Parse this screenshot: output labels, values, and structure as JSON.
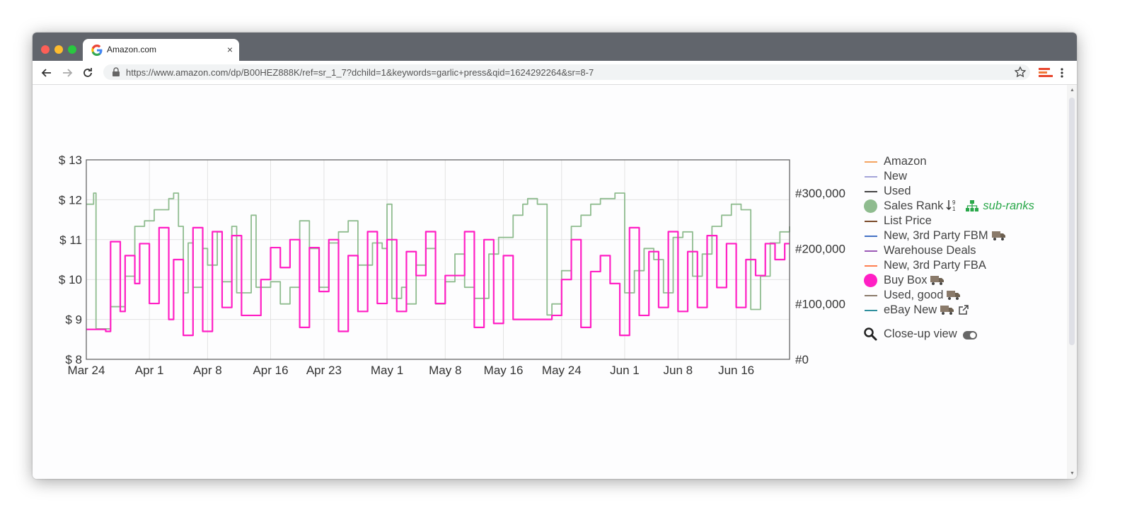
{
  "browser": {
    "tab_title": "Amazon.com",
    "tab_close": "×",
    "url": "https://www.amazon.com/dp/B00HEZ888K/ref=sr_1_7?dchild=1&keywords=garlic+press&qid=1624292264&sr=8-7"
  },
  "legend": {
    "items": [
      {
        "label": "Amazon",
        "color": "#f4a460",
        "kind": "line"
      },
      {
        "label": "New",
        "color": "#a4a4d8",
        "kind": "line"
      },
      {
        "label": "Used",
        "color": "#444444",
        "kind": "line"
      },
      {
        "label": "Sales Rank",
        "color": "#8fbc8f",
        "kind": "dot"
      },
      {
        "label": "List Price",
        "color": "#7a4a2a",
        "kind": "line"
      },
      {
        "label": "New, 3rd Party FBM",
        "color": "#4472c4",
        "kind": "line"
      },
      {
        "label": "Warehouse Deals",
        "color": "#9b59b6",
        "kind": "line"
      },
      {
        "label": "New, 3rd Party FBA",
        "color": "#ff7f50",
        "kind": "line"
      },
      {
        "label": "Buy Box",
        "color": "#ff1fc4",
        "kind": "dot"
      },
      {
        "label": "Used, good",
        "color": "#8a7a6a",
        "kind": "line"
      },
      {
        "label": "eBay New",
        "color": "#2f8f9d",
        "kind": "line"
      }
    ],
    "sub_ranks_label": "sub-ranks",
    "closeup_label": "Close-up view"
  },
  "chart_data": {
    "type": "line",
    "x_range": [
      "Mar 24",
      "Jun 21"
    ],
    "x_ticks": [
      "Mar 24",
      "Apr 1",
      "Apr 8",
      "Apr 16",
      "Apr 23",
      "May 1",
      "May 8",
      "May 16",
      "May 24",
      "Jun 1",
      "Jun 8",
      "Jun 16"
    ],
    "y_left_ticks": [
      "$ 8",
      "$ 9",
      "$ 10",
      "$ 11",
      "$ 12",
      "$ 13"
    ],
    "y_left_range": [
      8,
      13
    ],
    "y_right_ticks": [
      "#0",
      "#100,000",
      "#200,000",
      "#300,000"
    ],
    "y_right_range": [
      0,
      360000
    ],
    "grid": true,
    "series": [
      {
        "name": "Sales Rank",
        "axis": "right",
        "color": "#8fbc8f",
        "points": [
          [
            0,
            280000
          ],
          [
            1.5,
            300000
          ],
          [
            2,
            55000
          ],
          [
            5,
            95000
          ],
          [
            8,
            150000
          ],
          [
            10,
            240000
          ],
          [
            12,
            250000
          ],
          [
            14,
            270000
          ],
          [
            17,
            290000
          ],
          [
            18,
            300000
          ],
          [
            19,
            240000
          ],
          [
            20,
            120000
          ],
          [
            21,
            210000
          ],
          [
            22,
            130000
          ],
          [
            24,
            200000
          ],
          [
            25,
            170000
          ],
          [
            27,
            230000
          ],
          [
            28,
            140000
          ],
          [
            30,
            240000
          ],
          [
            31,
            120000
          ],
          [
            34,
            260000
          ],
          [
            35,
            130000
          ],
          [
            38,
            140000
          ],
          [
            40,
            100000
          ],
          [
            42,
            130000
          ],
          [
            44,
            250000
          ],
          [
            46,
            200000
          ],
          [
            48,
            130000
          ],
          [
            50,
            210000
          ],
          [
            52,
            230000
          ],
          [
            54,
            250000
          ],
          [
            56,
            170000
          ],
          [
            59,
            210000
          ],
          [
            61,
            200000
          ],
          [
            62,
            280000
          ],
          [
            63,
            110000
          ],
          [
            65,
            130000
          ],
          [
            66,
            100000
          ],
          [
            68,
            170000
          ],
          [
            70,
            200000
          ],
          [
            72,
            100000
          ],
          [
            74,
            140000
          ],
          [
            76,
            190000
          ],
          [
            78,
            130000
          ],
          [
            80,
            110000
          ],
          [
            83,
            190000
          ],
          [
            85,
            220000
          ],
          [
            88,
            260000
          ],
          [
            90,
            280000
          ],
          [
            91,
            290000
          ],
          [
            93,
            280000
          ],
          [
            95,
            80000
          ],
          [
            96,
            100000
          ],
          [
            98,
            160000
          ],
          [
            100,
            240000
          ],
          [
            102,
            260000
          ],
          [
            104,
            280000
          ],
          [
            106,
            290000
          ],
          [
            109,
            300000
          ],
          [
            111,
            120000
          ],
          [
            113,
            160000
          ],
          [
            115,
            200000
          ],
          [
            117,
            180000
          ],
          [
            119,
            120000
          ],
          [
            121,
            220000
          ],
          [
            123,
            230000
          ],
          [
            125,
            150000
          ],
          [
            127,
            190000
          ],
          [
            129,
            240000
          ],
          [
            131,
            260000
          ],
          [
            133,
            280000
          ],
          [
            135,
            270000
          ],
          [
            137,
            90000
          ],
          [
            139,
            150000
          ],
          [
            141,
            210000
          ],
          [
            143,
            230000
          ],
          [
            145,
            240000
          ]
        ]
      },
      {
        "name": "Buy Box",
        "axis": "left",
        "color": "#ff1fc4",
        "points": [
          [
            0,
            8.75
          ],
          [
            4,
            8.7
          ],
          [
            5,
            10.95
          ],
          [
            7,
            9.2
          ],
          [
            8,
            10.6
          ],
          [
            10,
            9.9
          ],
          [
            11,
            10.9
          ],
          [
            13,
            9.4
          ],
          [
            15,
            11.3
          ],
          [
            17,
            9.0
          ],
          [
            18,
            10.5
          ],
          [
            20,
            8.6
          ],
          [
            22,
            11.3
          ],
          [
            24,
            8.7
          ],
          [
            26,
            11.2
          ],
          [
            28,
            9.3
          ],
          [
            30,
            11.1
          ],
          [
            32,
            9.1
          ],
          [
            34,
            9.1
          ],
          [
            36,
            10.0
          ],
          [
            38,
            10.8
          ],
          [
            40,
            10.3
          ],
          [
            42,
            11.0
          ],
          [
            44,
            8.8
          ],
          [
            46,
            10.8
          ],
          [
            48,
            9.7
          ],
          [
            50,
            11.0
          ],
          [
            52,
            8.7
          ],
          [
            54,
            10.6
          ],
          [
            56,
            9.2
          ],
          [
            58,
            11.2
          ],
          [
            60,
            9.4
          ],
          [
            62,
            11.0
          ],
          [
            64,
            9.2
          ],
          [
            66,
            10.7
          ],
          [
            68,
            10.1
          ],
          [
            70,
            11.2
          ],
          [
            72,
            9.4
          ],
          [
            74,
            10.1
          ],
          [
            76,
            10.1
          ],
          [
            78,
            11.2
          ],
          [
            80,
            8.8
          ],
          [
            82,
            11.0
          ],
          [
            84,
            8.9
          ],
          [
            86,
            10.6
          ],
          [
            88,
            9.0
          ],
          [
            90,
            9.0
          ],
          [
            94,
            9.0
          ],
          [
            96,
            9.1
          ],
          [
            98,
            10.0
          ],
          [
            100,
            11.0
          ],
          [
            102,
            8.8
          ],
          [
            104,
            10.2
          ],
          [
            106,
            10.6
          ],
          [
            108,
            9.9
          ],
          [
            110,
            8.6
          ],
          [
            112,
            11.3
          ],
          [
            114,
            9.1
          ],
          [
            116,
            10.7
          ],
          [
            118,
            9.3
          ],
          [
            120,
            11.2
          ],
          [
            122,
            9.2
          ],
          [
            124,
            10.7
          ],
          [
            126,
            9.3
          ],
          [
            128,
            11.1
          ],
          [
            130,
            9.8
          ],
          [
            132,
            10.9
          ],
          [
            134,
            9.3
          ],
          [
            136,
            10.5
          ],
          [
            138,
            10.1
          ],
          [
            140,
            10.9
          ],
          [
            142,
            10.5
          ],
          [
            144,
            10.9
          ]
        ]
      }
    ]
  }
}
